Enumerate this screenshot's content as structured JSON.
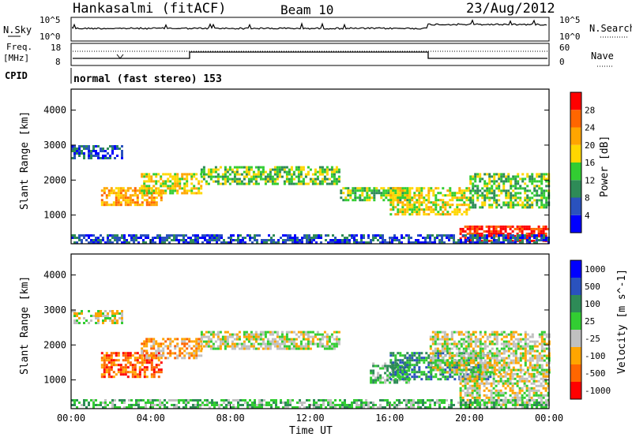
{
  "header": {
    "radar": "Hankasalmi (fitACF)",
    "beam": "Beam 10",
    "date": "23/Aug/2012"
  },
  "nsky_panel": {
    "left_label": "N.Sky",
    "right_label": "N.Search",
    "left_ticks": [
      "10^5",
      "10^0"
    ],
    "right_ticks": [
      "10^5",
      "10^0"
    ]
  },
  "freq_panel": {
    "left_label_1": "Freq.",
    "left_label_2": "[MHz]",
    "left_ticks": [
      "18",
      "8"
    ],
    "right_label": "Nave",
    "right_ticks": [
      "60",
      "0"
    ]
  },
  "cpid": {
    "label": "CPID",
    "value": "normal (fast stereo) 153"
  },
  "x_axis": {
    "title": "Time UT",
    "ticks": [
      "00:00",
      "04:00",
      "08:00",
      "12:00",
      "16:00",
      "20:00",
      "00:00"
    ]
  },
  "colors": {
    "power": [
      "#0000ff",
      "#2a52be",
      "#2e8b57",
      "#32cd32",
      "#ffd700",
      "#ffa500",
      "#ff6600",
      "#ff0000"
    ],
    "velocity": [
      "#ff0000",
      "#ff6600",
      "#ffa500",
      "#c0c0c0",
      "#32cd32",
      "#2e8b57",
      "#2a52be",
      "#0000ff"
    ]
  },
  "chart_data": [
    {
      "type": "heatmap",
      "name": "power",
      "ylabel": "Slant Range [km]",
      "y_ticks": [
        1000,
        2000,
        3000,
        4000
      ],
      "ylim": [
        180,
        4600
      ],
      "xlim": [
        0,
        24
      ],
      "colorbar_label": "Power [dB]",
      "colorbar_ticks": [
        4,
        8,
        12,
        16,
        20,
        24,
        28
      ],
      "colorbar_range": [
        0,
        32
      ],
      "bands": [
        {
          "x": [
            0.0,
            2.5
          ],
          "y": [
            2600,
            3000
          ],
          "level": 1
        },
        {
          "x": [
            1.5,
            4.5
          ],
          "y": [
            1300,
            1800
          ],
          "level": 5
        },
        {
          "x": [
            3.5,
            6.5
          ],
          "y": [
            1600,
            2200
          ],
          "level": 4
        },
        {
          "x": [
            6.5,
            13.5
          ],
          "y": [
            1900,
            2400
          ],
          "level": 3
        },
        {
          "x": [
            13.5,
            17.0
          ],
          "y": [
            1400,
            1800
          ],
          "level": 3
        },
        {
          "x": [
            16.0,
            20.0
          ],
          "y": [
            1000,
            1800
          ],
          "level": 4
        },
        {
          "x": [
            19.5,
            24.0
          ],
          "y": [
            250,
            700
          ],
          "level": 7
        },
        {
          "x": [
            20.0,
            24.0
          ],
          "y": [
            1200,
            2200
          ],
          "level": 3
        },
        {
          "x": [
            0.0,
            24.0
          ],
          "y": [
            200,
            450
          ],
          "level": 1
        }
      ]
    },
    {
      "type": "heatmap",
      "name": "velocity",
      "ylabel": "Slant Range [km]",
      "y_ticks": [
        1000,
        2000,
        3000,
        4000
      ],
      "ylim": [
        180,
        4600
      ],
      "xlim": [
        0,
        24
      ],
      "colorbar_label": "Velocity [m s^-1]",
      "colorbar_ticks": [
        -1000,
        -500,
        -100,
        -25,
        25,
        100,
        500,
        1000
      ],
      "bands": [
        {
          "x": [
            0.0,
            2.5
          ],
          "y": [
            2600,
            3000
          ],
          "level": 3
        },
        {
          "x": [
            1.5,
            4.5
          ],
          "y": [
            1100,
            1800
          ],
          "level": 1
        },
        {
          "x": [
            3.5,
            6.5
          ],
          "y": [
            1600,
            2200
          ],
          "level": 2
        },
        {
          "x": [
            6.5,
            13.5
          ],
          "y": [
            1900,
            2400
          ],
          "level": 3
        },
        {
          "x": [
            15.0,
            17.0
          ],
          "y": [
            900,
            1500
          ],
          "level": 4
        },
        {
          "x": [
            16.0,
            21.0
          ],
          "y": [
            1000,
            1800
          ],
          "level": 5
        },
        {
          "x": [
            18.0,
            24.0
          ],
          "y": [
            1200,
            2400
          ],
          "level": 3
        },
        {
          "x": [
            19.5,
            24.0
          ],
          "y": [
            300,
            1200
          ],
          "level": 3
        },
        {
          "x": [
            0.0,
            24.0
          ],
          "y": [
            200,
            450
          ],
          "level": 4
        }
      ]
    }
  ]
}
